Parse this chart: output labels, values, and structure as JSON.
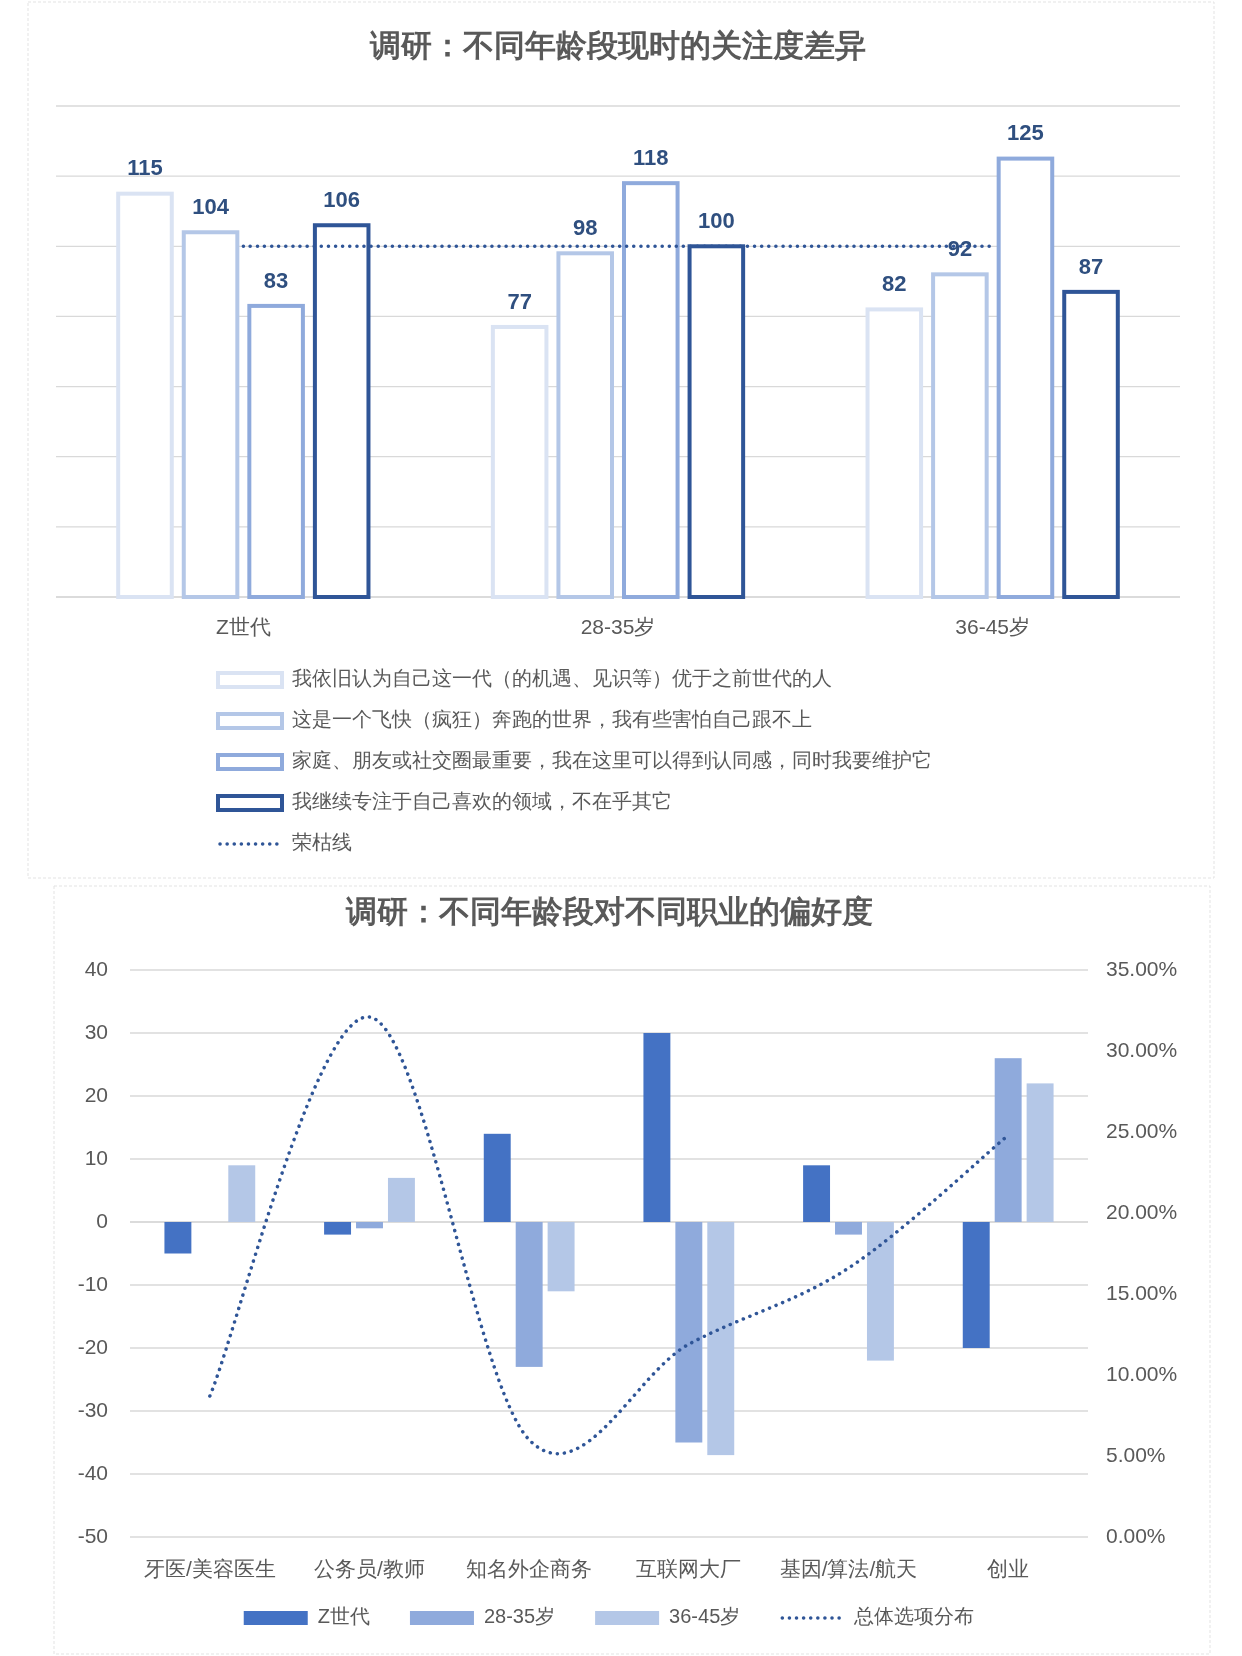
{
  "chart_data": [
    {
      "type": "bar",
      "title": "调研：不同年龄段现时的关注度差异",
      "categories": [
        "Z世代",
        "28-35岁",
        "36-45岁"
      ],
      "series": [
        {
          "name": "我依旧认为自己这一代（的机遇、见识等）优于之前世代的人",
          "color": "#dae3f3",
          "values": [
            115,
            77,
            82
          ]
        },
        {
          "name": "这是一个飞快（疯狂）奔跑的世界，我有些害怕自己跟不上",
          "color": "#b4c7e7",
          "values": [
            104,
            98,
            92
          ]
        },
        {
          "name": "家庭、朋友或社交圈最重要，我在这里可以得到认同感，同时我要维护它",
          "color": "#8faadc",
          "values": [
            83,
            118,
            125
          ]
        },
        {
          "name": "我继续专注于自己喜欢的领域，不在乎其它",
          "color": "#2f5597",
          "values": [
            106,
            100,
            87
          ]
        },
        {
          "name": "荣枯线",
          "type": "line",
          "color": "#2f5597",
          "line_style": "dotted",
          "values": [
            100,
            100,
            100
          ],
          "value_labels": [
            null,
            null,
            null
          ]
        }
      ],
      "ylim": [
        0,
        140
      ],
      "yticks": [
        {
          "value": 0,
          "label": null
        },
        {
          "value": 20,
          "label": null
        },
        {
          "value": 40,
          "label": null
        },
        {
          "value": 60,
          "label": null
        },
        {
          "value": 80,
          "label": null
        },
        {
          "value": 100,
          "label": null
        },
        {
          "value": 120,
          "label": null
        },
        {
          "value": 140,
          "label": null
        }
      ],
      "tick_labels": "x",
      "grid": "y",
      "legend": "bottom",
      "data_labels": true
    },
    {
      "type": "bar",
      "title": "调研：不同年龄段对不同职业的偏好度",
      "categories": [
        "牙医/美容医生",
        "公务员/教师",
        "知名外企商务",
        "互联网大厂",
        "基因/算法/航天",
        "创业"
      ],
      "series": [
        {
          "name": "Z世代",
          "color": "#4472c4",
          "values": [
            -5,
            -2,
            14,
            30,
            9,
            -20
          ]
        },
        {
          "name": "28-35岁",
          "color": "#8faadc",
          "values": [
            0,
            -1,
            -23,
            -35,
            -2,
            26
          ]
        },
        {
          "name": "36-45岁",
          "color": "#b4c7e7",
          "values": [
            9,
            7,
            -11,
            -37,
            -22,
            22
          ]
        },
        {
          "name": "总体选项分布",
          "type": "line",
          "axis": "y2",
          "color": "#2f5597",
          "line_style": "dotted",
          "values": [
            8.7,
            32.1,
            6.0,
            11.9,
            16.6,
            24.8
          ]
        }
      ],
      "ylim": [
        -50,
        40
      ],
      "yticks": [
        -50,
        -40,
        -30,
        -20,
        -10,
        0,
        10,
        20,
        30,
        40
      ],
      "y2lim": [
        0,
        35
      ],
      "y2ticks": [
        {
          "value": 0,
          "label": "0.00%"
        },
        {
          "value": 5,
          "label": "5.00%"
        },
        {
          "value": 10,
          "label": "10.00%"
        },
        {
          "value": 15,
          "label": "15.00%"
        },
        {
          "value": 20,
          "label": "20.00%"
        },
        {
          "value": 25,
          "label": "25.00%"
        },
        {
          "value": 30,
          "label": "30.00%"
        },
        {
          "value": 35,
          "label": "35.00%"
        }
      ],
      "grid": "y",
      "legend": "bottom"
    }
  ]
}
